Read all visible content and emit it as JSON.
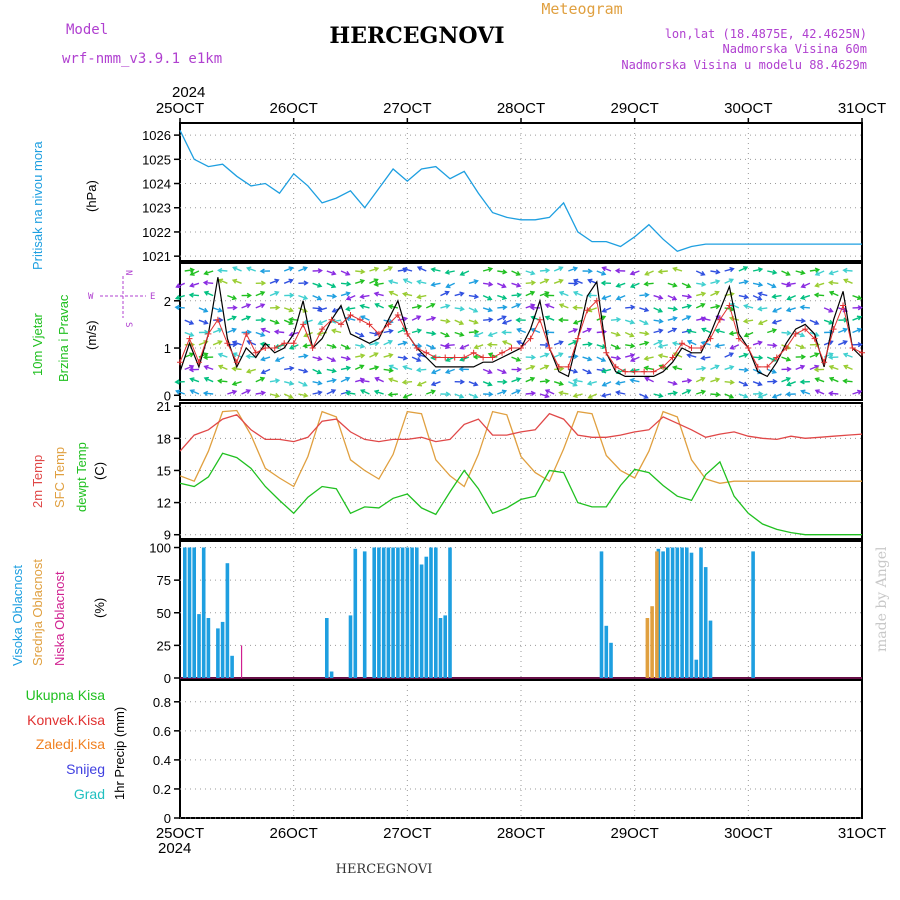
{
  "header": {
    "model_label": "Model",
    "model_name": "wrf-nmm_v3.9.1 e1km",
    "station": "HERCEGNOVI",
    "meteogram": "Meteogram",
    "lonlat": "lon,lat (18.4875E, 42.4625N)",
    "elevation": "Nadmorska Visina 60m",
    "model_elevation": "Nadmorska Visina u modelu 88.4629m",
    "year": "2024",
    "footer_station": "HERCEGNOVI",
    "credit": "made by Angel"
  },
  "time_axis": {
    "labels": [
      "25OCT",
      "26OCT",
      "27OCT",
      "28OCT",
      "29OCT",
      "30OCT",
      "31OCT"
    ]
  },
  "panels": {
    "pressure": {
      "label1": "Pritisak na nivou mora",
      "unit": "(hPa)"
    },
    "wind": {
      "label1": "10m Vjetar",
      "label2": "Brzina i Pravac",
      "unit": "(m/s)",
      "compass_w": "W",
      "compass_e": "E",
      "compass_n": "N",
      "compass_s": "S"
    },
    "temp": {
      "label1": "2m Temp",
      "label2": "SFC Temp",
      "label3": "dewpt Temp",
      "unit": "(C)"
    },
    "cloud": {
      "label1": "Visoka Oblacnost",
      "label2": "Srednja Oblacnost",
      "label3": "Niska Oblacnost",
      "unit": "(%)"
    },
    "precip": {
      "labels": [
        "Ukupna Kisa",
        "Konvek.Kisa",
        "Zaledj.Kisa",
        "Snijeg",
        "Grad"
      ],
      "unit": "1hr Precip (mm)"
    }
  },
  "colors": {
    "pressure": "#1e9fe0",
    "wind_speed": "#000000",
    "gust": "#e03030",
    "t2m": "#e04848",
    "sfc": "#e0a040",
    "dewpt": "#20c020",
    "cloud_high": "#1e9fe0",
    "cloud_mid": "#e0a040",
    "cloud_low": "#d02090",
    "ukupna": "#20c020",
    "konvek": "#e03030",
    "zaledj": "#f08020",
    "snijeg": "#4040e0",
    "grad": "#20c0c0",
    "purple": "#b040d0",
    "orange_head": "#e0a040"
  },
  "chart_data": [
    {
      "type": "line",
      "name": "pressure",
      "ylim": [
        1020.8,
        1026.5
      ],
      "yticks": [
        1021,
        1022,
        1023,
        1024,
        1025,
        1026
      ],
      "hours": [
        0,
        3,
        6,
        9,
        12,
        15,
        18,
        21,
        24,
        27,
        30,
        33,
        36,
        39,
        42,
        45,
        48,
        51,
        54,
        57,
        60,
        63,
        66,
        69,
        72,
        75,
        78,
        81,
        84,
        87,
        90,
        93,
        96,
        99,
        102,
        105,
        108,
        111,
        114,
        117,
        120,
        123,
        126,
        129,
        132,
        135,
        138,
        141,
        144
      ],
      "values": [
        1026.2,
        1025.0,
        1024.7,
        1024.8,
        1024.3,
        1023.9,
        1024.0,
        1023.6,
        1024.4,
        1023.9,
        1023.2,
        1023.4,
        1023.7,
        1023.0,
        1023.8,
        1024.6,
        1024.1,
        1024.6,
        1024.7,
        1024.2,
        1024.5,
        1023.6,
        1022.8,
        1022.6,
        1022.5,
        1022.5,
        1022.6,
        1023.2,
        1022.0,
        1021.6,
        1021.6,
        1021.4,
        1021.8,
        1022.3,
        1021.7,
        1021.2,
        1021.4,
        1021.5,
        1021.5,
        1021.5,
        1021.5,
        1021.5,
        1021.5,
        1021.5,
        1021.5,
        1021.5,
        1021.5,
        1021.5,
        1021.5
      ]
    },
    {
      "type": "line",
      "name": "wind",
      "ylim": [
        -0.1,
        2.8
      ],
      "yticks": [
        0,
        1,
        2
      ],
      "hours": [
        0,
        2,
        4,
        6,
        8,
        10,
        12,
        14,
        16,
        18,
        20,
        22,
        24,
        26,
        28,
        30,
        32,
        34,
        36,
        38,
        40,
        42,
        44,
        46,
        48,
        50,
        52,
        54,
        56,
        58,
        60,
        62,
        64,
        66,
        68,
        70,
        72,
        74,
        76,
        78,
        80,
        82,
        84,
        86,
        88,
        90,
        92,
        94,
        96,
        98,
        100,
        102,
        104,
        106,
        108,
        110,
        112,
        114,
        116,
        118,
        120,
        122,
        124,
        126,
        128,
        130,
        132,
        134,
        136,
        138,
        140,
        142,
        144
      ],
      "speed": [
        0.5,
        1.1,
        0.6,
        1.3,
        2.5,
        1.2,
        0.6,
        1.0,
        0.8,
        1.1,
        0.9,
        1.0,
        1.3,
        2.0,
        1.0,
        1.2,
        1.6,
        1.9,
        1.3,
        1.2,
        1.1,
        1.2,
        1.6,
        2.0,
        1.3,
        1.0,
        0.8,
        0.6,
        0.6,
        0.6,
        0.6,
        0.6,
        0.7,
        0.7,
        0.8,
        0.9,
        1.0,
        1.4,
        2.0,
        1.0,
        0.5,
        0.4,
        1.2,
        2.1,
        2.4,
        0.9,
        0.5,
        0.4,
        0.4,
        0.4,
        0.4,
        0.5,
        0.7,
        1.0,
        0.9,
        0.9,
        1.3,
        1.8,
        2.3,
        1.3,
        1.0,
        0.5,
        0.4,
        0.7,
        1.1,
        1.4,
        1.5,
        1.3,
        0.6,
        1.6,
        2.2,
        1.0,
        0.8
      ],
      "gust": [
        0.7,
        1.2,
        0.7,
        1.3,
        1.6,
        1.1,
        0.7,
        1.3,
        0.9,
        1.0,
        1.0,
        1.1,
        1.1,
        1.5,
        1.0,
        1.4,
        1.6,
        1.5,
        1.7,
        1.6,
        1.5,
        1.3,
        1.5,
        1.7,
        1.3,
        1.0,
        0.9,
        0.8,
        0.8,
        0.8,
        0.8,
        0.9,
        0.8,
        0.8,
        0.9,
        1.0,
        1.0,
        1.2,
        1.6,
        1.0,
        0.6,
        0.6,
        1.2,
        1.8,
        2.0,
        0.9,
        0.6,
        0.5,
        0.5,
        0.5,
        0.5,
        0.6,
        0.8,
        1.1,
        1.0,
        1.0,
        1.2,
        1.6,
        1.9,
        1.2,
        1.0,
        0.6,
        0.6,
        0.8,
        1.0,
        1.3,
        1.4,
        1.2,
        0.7,
        1.4,
        1.9,
        1.0,
        0.9
      ]
    },
    {
      "type": "line",
      "name": "temperature",
      "ylim": [
        8.6,
        21.3
      ],
      "yticks": [
        9,
        12,
        15,
        18,
        21
      ],
      "hours": [
        0,
        3,
        6,
        9,
        12,
        15,
        18,
        21,
        24,
        27,
        30,
        33,
        36,
        39,
        42,
        45,
        48,
        51,
        54,
        57,
        60,
        63,
        66,
        69,
        72,
        75,
        78,
        81,
        84,
        87,
        90,
        93,
        96,
        99,
        102,
        105,
        108,
        111,
        114,
        117,
        120,
        123,
        126,
        129,
        132,
        135,
        138,
        141,
        144
      ],
      "t2m": [
        16.8,
        18.3,
        18.8,
        19.8,
        20.2,
        18.8,
        17.9,
        17.9,
        17.7,
        18.1,
        19.6,
        19.8,
        18.6,
        17.9,
        17.7,
        17.9,
        17.9,
        18.1,
        17.7,
        17.9,
        19.3,
        19.8,
        18.3,
        18.3,
        18.6,
        18.8,
        20.3,
        19.8,
        18.3,
        18.1,
        18.1,
        18.3,
        18.6,
        18.8,
        20.0,
        19.4,
        18.8,
        18.1,
        18.4,
        18.6,
        18.2,
        18.0,
        17.9,
        18.2,
        18.0,
        18.1,
        18.2,
        18.3,
        18.4
      ],
      "sfc": [
        14.5,
        14.0,
        16.8,
        20.5,
        20.6,
        18.3,
        15.2,
        14.3,
        13.5,
        16.3,
        20.5,
        20.0,
        16.0,
        15.0,
        14.2,
        16.5,
        20.5,
        20.3,
        16.0,
        14.5,
        13.5,
        16.5,
        20.5,
        20.2,
        16.3,
        14.8,
        14.0,
        17.0,
        20.5,
        20.3,
        16.4,
        15.0,
        14.3,
        16.8,
        20.5,
        20.0,
        16.0,
        14.2,
        13.8,
        14.0,
        14.0,
        14.0,
        14.0,
        14.0,
        14.0,
        14.0,
        14.0,
        14.0,
        14.0
      ],
      "dewpt": [
        13.8,
        13.5,
        14.4,
        16.6,
        16.2,
        15.2,
        13.5,
        12.2,
        11.0,
        12.5,
        13.5,
        13.3,
        11.0,
        11.6,
        11.5,
        12.4,
        12.8,
        11.5,
        10.9,
        13.0,
        15.0,
        13.3,
        11.0,
        11.5,
        12.3,
        12.6,
        15.0,
        14.8,
        12.0,
        11.6,
        11.6,
        13.6,
        15.1,
        14.8,
        13.6,
        12.6,
        12.2,
        14.6,
        15.8,
        12.6,
        11.0,
        10.0,
        9.5,
        9.2,
        9.0,
        9.0,
        9.0,
        9.0,
        9.0
      ]
    },
    {
      "type": "bar",
      "name": "clouds",
      "ylim": [
        0,
        105
      ],
      "yticks": [
        0,
        25,
        50,
        75,
        100
      ],
      "high": [
        [
          1,
          100
        ],
        [
          2,
          100
        ],
        [
          3,
          100
        ],
        [
          4,
          49
        ],
        [
          5,
          100
        ],
        [
          6,
          46
        ],
        [
          8,
          38
        ],
        [
          9,
          43
        ],
        [
          10,
          88
        ],
        [
          11,
          17
        ],
        [
          31,
          46
        ],
        [
          32,
          5
        ],
        [
          36,
          48
        ],
        [
          37,
          99
        ],
        [
          39,
          97
        ],
        [
          41,
          100
        ],
        [
          42,
          100
        ],
        [
          43,
          100
        ],
        [
          44,
          100
        ],
        [
          45,
          100
        ],
        [
          46,
          100
        ],
        [
          47,
          100
        ],
        [
          48,
          100
        ],
        [
          49,
          100
        ],
        [
          50,
          100
        ],
        [
          51,
          87
        ],
        [
          52,
          93
        ],
        [
          53,
          100
        ],
        [
          54,
          100
        ],
        [
          55,
          46
        ],
        [
          56,
          48
        ],
        [
          57,
          100
        ],
        [
          89,
          97
        ],
        [
          90,
          40
        ],
        [
          91,
          27
        ],
        [
          101,
          99
        ],
        [
          102,
          97
        ],
        [
          103,
          100
        ],
        [
          104,
          100
        ],
        [
          105,
          100
        ],
        [
          106,
          100
        ],
        [
          107,
          100
        ],
        [
          108,
          96
        ],
        [
          109,
          14
        ],
        [
          110,
          100
        ],
        [
          111,
          85
        ],
        [
          112,
          44
        ],
        [
          121,
          97
        ]
      ],
      "mid": [
        [
          99,
          46
        ],
        [
          100,
          55
        ],
        [
          101,
          97
        ]
      ],
      "low": [
        [
          13,
          25
        ]
      ]
    },
    {
      "type": "bar",
      "name": "precipitation",
      "ylim": [
        0,
        0.95
      ],
      "yticks": [
        0,
        0.2,
        0.4,
        0.6,
        0.8
      ],
      "values": []
    }
  ]
}
